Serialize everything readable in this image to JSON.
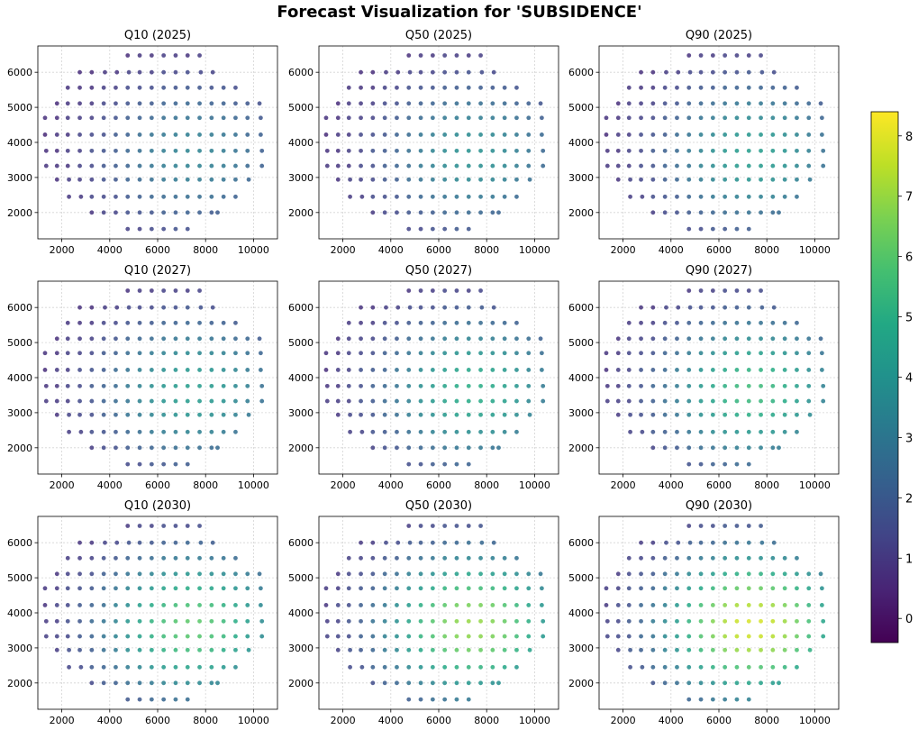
{
  "figure": {
    "title": "Forecast Visualization for 'SUBSIDENCE'"
  },
  "chart_data": [
    {
      "type": "scatter",
      "title": "Q10 (2025)",
      "quantile": "Q10",
      "year": 2025,
      "xlim": [
        1000,
        11000
      ],
      "ylim": [
        1250,
        6750
      ],
      "xticks": [
        2000,
        4000,
        6000,
        8000,
        10000
      ],
      "yticks": [
        2000,
        3000,
        4000,
        5000,
        6000
      ],
      "grid": true
    },
    {
      "type": "scatter",
      "title": "Q50 (2025)",
      "quantile": "Q50",
      "year": 2025,
      "xlim": [
        1000,
        11000
      ],
      "ylim": [
        1250,
        6750
      ],
      "xticks": [
        2000,
        4000,
        6000,
        8000,
        10000
      ],
      "yticks": [
        2000,
        3000,
        4000,
        5000,
        6000
      ],
      "grid": true
    },
    {
      "type": "scatter",
      "title": "Q90 (2025)",
      "quantile": "Q90",
      "year": 2025,
      "xlim": [
        1000,
        11000
      ],
      "ylim": [
        1250,
        6750
      ],
      "xticks": [
        2000,
        4000,
        6000,
        8000,
        10000
      ],
      "yticks": [
        2000,
        3000,
        4000,
        5000,
        6000
      ],
      "grid": true
    },
    {
      "type": "scatter",
      "title": "Q10 (2027)",
      "quantile": "Q10",
      "year": 2027,
      "xlim": [
        1000,
        11000
      ],
      "ylim": [
        1250,
        6750
      ],
      "xticks": [
        2000,
        4000,
        6000,
        8000,
        10000
      ],
      "yticks": [
        2000,
        3000,
        4000,
        5000,
        6000
      ],
      "grid": true
    },
    {
      "type": "scatter",
      "title": "Q50 (2027)",
      "quantile": "Q50",
      "year": 2027,
      "xlim": [
        1000,
        11000
      ],
      "ylim": [
        1250,
        6750
      ],
      "xticks": [
        2000,
        4000,
        6000,
        8000,
        10000
      ],
      "yticks": [
        2000,
        3000,
        4000,
        5000,
        6000
      ],
      "grid": true
    },
    {
      "type": "scatter",
      "title": "Q90 (2027)",
      "quantile": "Q90",
      "year": 2027,
      "xlim": [
        1000,
        11000
      ],
      "ylim": [
        1250,
        6750
      ],
      "xticks": [
        2000,
        4000,
        6000,
        8000,
        10000
      ],
      "yticks": [
        2000,
        3000,
        4000,
        5000,
        6000
      ],
      "grid": true
    },
    {
      "type": "scatter",
      "title": "Q10 (2030)",
      "quantile": "Q10",
      "year": 2030,
      "xlim": [
        1000,
        11000
      ],
      "ylim": [
        1250,
        6750
      ],
      "xticks": [
        2000,
        4000,
        6000,
        8000,
        10000
      ],
      "yticks": [
        2000,
        3000,
        4000,
        5000,
        6000
      ],
      "grid": true
    },
    {
      "type": "scatter",
      "title": "Q50 (2030)",
      "quantile": "Q50",
      "year": 2030,
      "xlim": [
        1000,
        11000
      ],
      "ylim": [
        1250,
        6750
      ],
      "xticks": [
        2000,
        4000,
        6000,
        8000,
        10000
      ],
      "yticks": [
        2000,
        3000,
        4000,
        5000,
        6000
      ],
      "grid": true
    },
    {
      "type": "scatter",
      "title": "Q90 (2030)",
      "quantile": "Q90",
      "year": 2030,
      "xlim": [
        1000,
        11000
      ],
      "ylim": [
        1250,
        6750
      ],
      "xticks": [
        2000,
        4000,
        6000,
        8000,
        10000
      ],
      "yticks": [
        2000,
        3000,
        4000,
        5000,
        6000
      ],
      "grid": true
    }
  ],
  "colorbar": {
    "colormap": "viridis",
    "range": [
      -0.4,
      8.4
    ],
    "ticks": [
      0,
      1,
      2,
      3,
      4,
      5,
      6,
      7,
      8
    ]
  },
  "points": {
    "rows_y": [
      6480,
      6000,
      5560,
      5110,
      4700,
      4220,
      3760,
      3330,
      2940,
      2450,
      2000,
      1530
    ],
    "rows_x": [
      [
        4750,
        5250,
        5750,
        6250,
        6750,
        7250,
        7750
      ],
      [
        2750,
        3250,
        3800,
        4300,
        4800,
        5250,
        5750,
        6250,
        6750,
        7250,
        7800,
        8300
      ],
      [
        2250,
        2750,
        3250,
        3750,
        4250,
        4750,
        5250,
        5750,
        6250,
        6750,
        7250,
        7750,
        8250,
        8750,
        9250
      ],
      [
        1800,
        2250,
        2750,
        3250,
        3750,
        4250,
        4750,
        5250,
        5750,
        6250,
        6750,
        7250,
        7750,
        8250,
        8750,
        9250,
        9750,
        10250
      ],
      [
        1300,
        1800,
        2250,
        2750,
        3250,
        3750,
        4250,
        4750,
        5250,
        5750,
        6250,
        6750,
        7250,
        7750,
        8250,
        8750,
        9250,
        9750,
        10300
      ],
      [
        1300,
        1800,
        2250,
        2750,
        3250,
        3750,
        4250,
        4750,
        5250,
        5750,
        6250,
        6750,
        7250,
        7750,
        8250,
        8750,
        9250,
        9750,
        10300
      ],
      [
        1350,
        1800,
        2250,
        2750,
        3250,
        3750,
        4250,
        4750,
        5250,
        5750,
        6250,
        6750,
        7250,
        7750,
        8250,
        8750,
        9250,
        9750,
        10350
      ],
      [
        1350,
        1800,
        2250,
        2750,
        3250,
        3750,
        4250,
        4750,
        5250,
        5750,
        6250,
        6750,
        7250,
        7750,
        8250,
        8750,
        9250,
        9750,
        10350
      ],
      [
        1800,
        2300,
        2750,
        3250,
        3750,
        4250,
        4750,
        5250,
        5750,
        6250,
        6750,
        7250,
        7750,
        8250,
        8750,
        9250,
        9800
      ],
      [
        2300,
        2800,
        3250,
        3750,
        4250,
        4750,
        5250,
        5750,
        6250,
        6750,
        7250,
        7750,
        8250,
        8750,
        9250
      ],
      [
        3250,
        3750,
        4250,
        4750,
        5250,
        5750,
        6250,
        6750,
        7250,
        7750,
        8250,
        8500
      ],
      [
        4750,
        5250,
        5750,
        6250,
        6750,
        7250
      ]
    ],
    "hotspot": {
      "x": 7400,
      "y": 3650
    },
    "peak_values": {
      "Q10 (2025)": 3.4,
      "Q50 (2025)": 3.9,
      "Q90 (2025)": 4.4,
      "Q10 (2027)": 4.4,
      "Q50 (2027)": 5.0,
      "Q90 (2027)": 5.5,
      "Q10 (2030)": 6.1,
      "Q50 (2030)": 7.0,
      "Q90 (2030)": 7.9
    }
  }
}
